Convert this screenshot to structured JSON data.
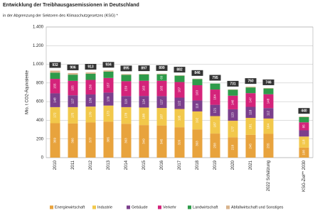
{
  "chart_data": {
    "type": "stacked_bar",
    "title": "Entwicklung der Treibhausgasemissionen in Deutschland",
    "subtitle": "in der Abgrenzung der Sektoren des Klimaschutzgesetzes (KSG) *",
    "y_label": "Mio. t CO2-Äquivalente",
    "categories": [
      "2010",
      "2011",
      "2012",
      "2013",
      "2014",
      "2015",
      "2016",
      "2017",
      "2018",
      "2019",
      "2020",
      "2021",
      "2022 Schätzung",
      null,
      "KSG-Ziel** 2030"
    ],
    "series": [
      {
        "name": "Energiewirtschaft",
        "color": "#e8a33d",
        "values": [
          369,
          366,
          377,
          385,
          363,
          349,
          345,
          326,
          303,
          258,
          218,
          245,
          255,
          null,
          108
        ]
      },
      {
        "name": "Industrie",
        "color": "#f2c84b",
        "values": [
          172,
          175,
          170,
          173,
          178,
          188,
          187,
          195,
          192,
          187,
          177,
          181,
          164,
          null,
          118
        ]
      },
      {
        "name": "Gebäude",
        "color": "#7b3f8c",
        "values": [
          148,
          127,
          130,
          139,
          119,
          124,
          127,
          122,
          118,
          121,
          123,
          118,
          112,
          null,
          67
        ]
      },
      {
        "name": "Verkehr",
        "color": "#d4237a",
        "values": [
          155,
          155,
          156,
          157,
          159,
          163,
          165,
          167,
          163,
          164,
          146,
          147,
          148,
          null,
          85
        ]
      },
      {
        "name": "Landwirtschaft",
        "color": "#2e9b4a",
        "values": [
          67,
          66,
          66,
          67,
          68,
          68,
          69,
          68,
          66,
          64,
          63,
          61,
          62,
          null,
          56
        ]
      },
      {
        "name": "Abfallwirtschaft und Sonstiges",
        "color": "#d9b38c",
        "values": [
          21,
          17,
          14,
          13,
          8,
          5,
          6,
          4,
          4,
          1,
          4,
          8,
          5,
          null,
          6
        ]
      }
    ],
    "totals": [
      932,
      906,
      913,
      934,
      895,
      897,
      899,
      882,
      846,
      795,
      731,
      760,
      746,
      null,
      440
    ],
    "ylim": [
      0,
      1400
    ],
    "yticks": [
      0,
      200,
      400,
      600,
      800,
      {
        "value": 1000,
        "label": "1.000"
      },
      {
        "value": 1200,
        "label": "1.200"
      },
      {
        "value": 1400,
        "label": "1.400"
      }
    ],
    "grid": true
  }
}
